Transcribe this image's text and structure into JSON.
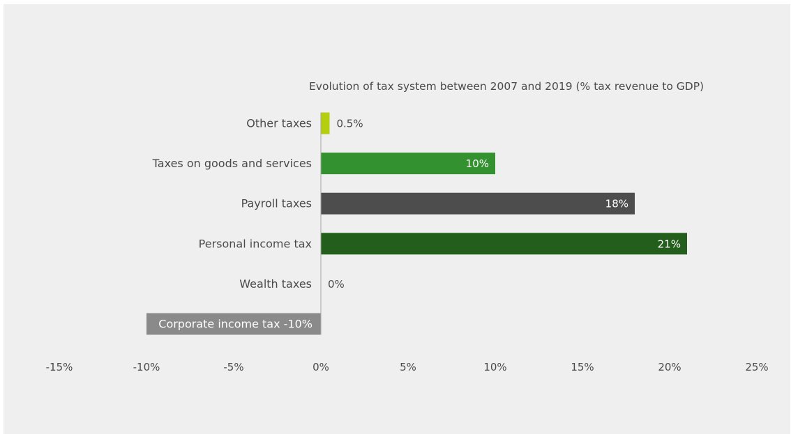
{
  "chart_data": {
    "type": "bar",
    "orientation": "horizontal",
    "title": "Evolution of tax system between 2007 and 2019 (% tax revenue to GDP)",
    "categories": [
      "Other taxes",
      "Taxes on goods and services",
      "Payroll taxes",
      "Personal income tax",
      "Wealth taxes",
      "Corporate income tax"
    ],
    "values": [
      0.5,
      10,
      18,
      21,
      0,
      -10
    ],
    "value_labels": [
      "0.5%",
      "10%",
      "18%",
      "21%",
      "0%",
      "-10%"
    ],
    "colors": [
      "#b5cf0e",
      "#33922f",
      "#4d4d4d",
      "#245e1c",
      "#808080",
      "#8a8a8a"
    ],
    "xlim": [
      -15,
      25
    ],
    "xticks": [
      -15,
      -10,
      -5,
      0,
      5,
      10,
      15,
      20,
      25
    ],
    "xtick_labels": [
      "-15%",
      "-10%",
      "-5%",
      "0%",
      "5%",
      "10%",
      "15%",
      "20%",
      "25%"
    ],
    "grid": false
  }
}
